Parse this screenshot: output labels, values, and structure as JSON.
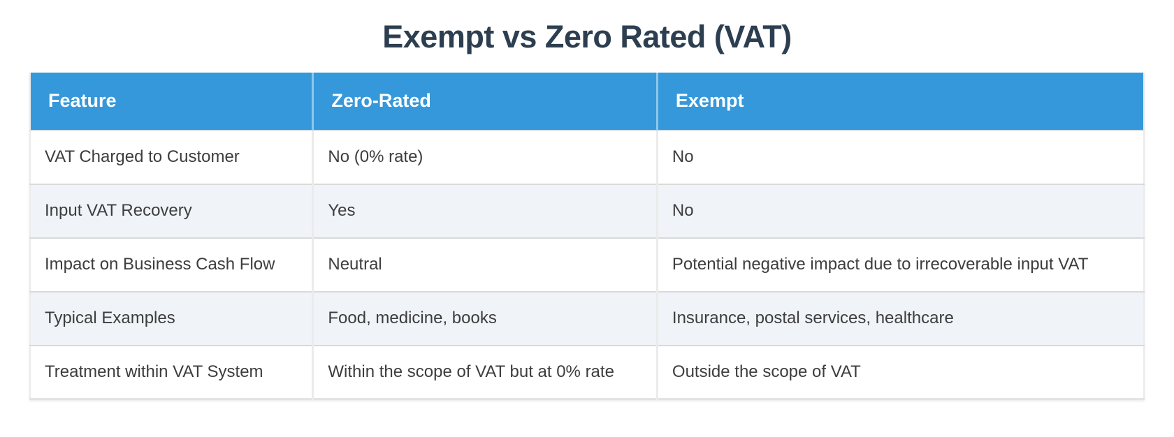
{
  "title": "Exempt vs Zero Rated (VAT)",
  "theme": {
    "page_bg": "#ffffff",
    "title_color": "#2c3e50",
    "header_bg": "#3598db",
    "header_text": "#ffffff",
    "alt_row_bg": "#f0f3f8",
    "body_text": "#3d3d3d",
    "row_border": "#d9d9d9",
    "col_border": "#ebebeb"
  },
  "table": {
    "columns": [
      {
        "key": "feature",
        "label": "Feature"
      },
      {
        "key": "zero_rated",
        "label": "Zero-Rated"
      },
      {
        "key": "exempt",
        "label": "Exempt"
      }
    ],
    "rows": [
      {
        "feature": "VAT Charged to Customer",
        "zero_rated": "No (0% rate)",
        "exempt": "No"
      },
      {
        "feature": "Input VAT Recovery",
        "zero_rated": "Yes",
        "exempt": "No"
      },
      {
        "feature": "Impact on Business Cash Flow",
        "zero_rated": "Neutral",
        "exempt": "Potential negative impact due to irrecoverable input VAT"
      },
      {
        "feature": "Typical Examples",
        "zero_rated": "Food, medicine, books",
        "exempt": "Insurance, postal services, healthcare"
      },
      {
        "feature": "Treatment within VAT System",
        "zero_rated": "Within the scope of VAT but at 0% rate",
        "exempt": "Outside the scope of VAT"
      }
    ]
  }
}
